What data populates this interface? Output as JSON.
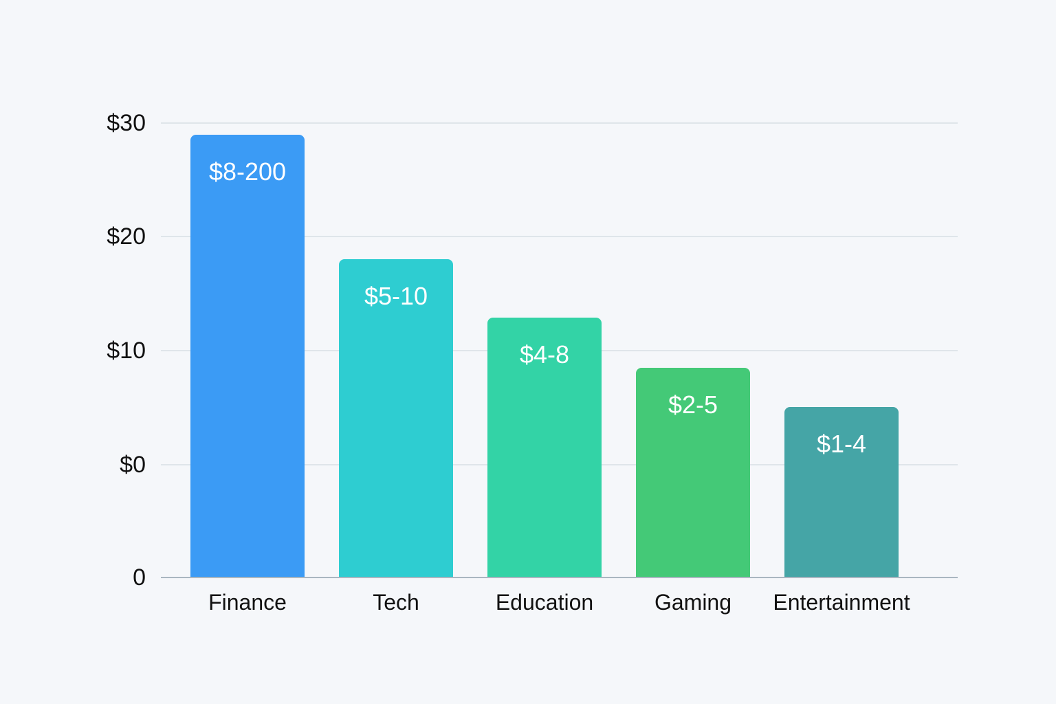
{
  "chart_data": {
    "type": "bar",
    "title": "",
    "xlabel": "",
    "ylabel": "",
    "categories": [
      "Finance",
      "Tech",
      "Education",
      "Gaming",
      "Entertainment"
    ],
    "values": [
      29,
      18,
      13,
      8.5,
      5
    ],
    "bar_labels": [
      "$8-200",
      "$5-10",
      "$4-8",
      "$2-5",
      "$1-4"
    ],
    "colors": [
      "#3b9bf5",
      "#2ecdd1",
      "#33d3a6",
      "#44c977",
      "#45a5a6"
    ],
    "y_tick_labels": [
      "$30",
      "$20",
      "$10",
      "$0",
      "0"
    ],
    "ylim": [
      0,
      30
    ],
    "grid": true,
    "legend": null
  }
}
